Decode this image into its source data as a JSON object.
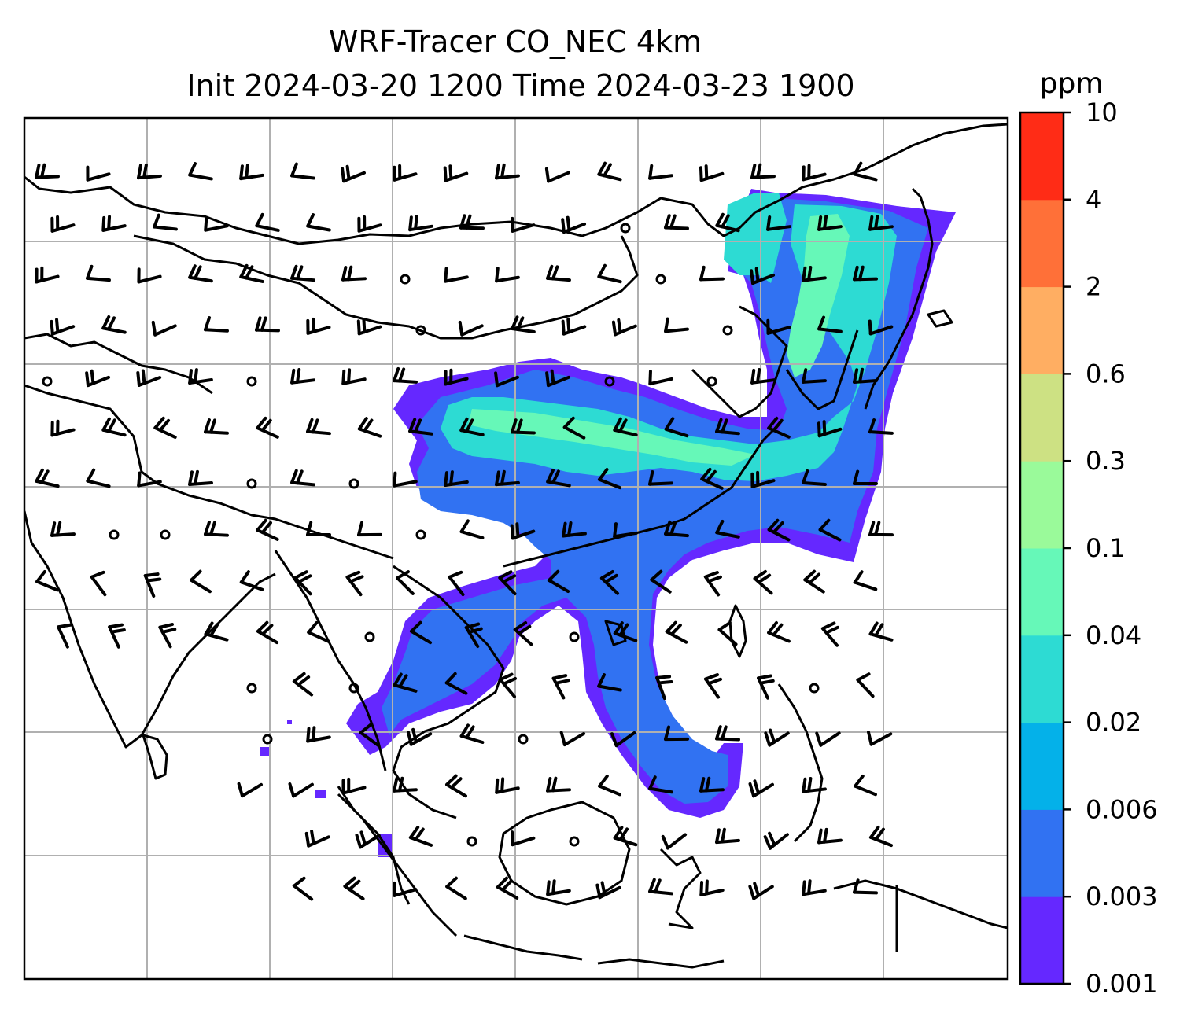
{
  "figure": {
    "title_line1": "WRF-Tracer CO_NEC 4km",
    "title_line2": "Init 2024-03-20 1200 Time 2024-03-23 1900"
  },
  "colorbar": {
    "unit": "ppm",
    "levels": [
      "0.001",
      "0.003",
      "0.006",
      "0.02",
      "0.04",
      "0.1",
      "0.3",
      "0.6",
      "2",
      "4",
      "10"
    ],
    "colors": [
      "#6528ff",
      "#3172f2",
      "#04b1e9",
      "#2ddbd3",
      "#66f8b8",
      "#9afa9a",
      "#cde183",
      "#ffae62",
      "#ff7038",
      "#ff2c16"
    ]
  },
  "map": {
    "gridlines": true,
    "coastline_color": "#000000",
    "grid_color": "#b0b0b0",
    "plume_description_colors": [
      "#6528ff",
      "#3172f2",
      "#2ddbd3",
      "#66f8b8"
    ],
    "wind_barbs": true
  }
}
